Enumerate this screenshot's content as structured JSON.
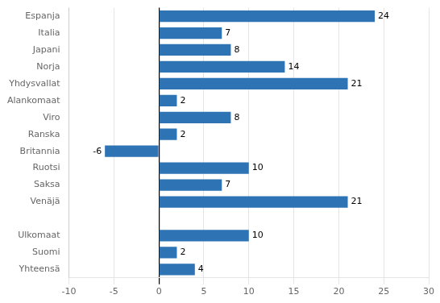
{
  "chart_data": {
    "type": "bar",
    "orientation": "horizontal",
    "categories": [
      "Yhteensä",
      "Suomi",
      "Ulkomaat",
      null,
      "Venäjä",
      "Saksa",
      "Ruotsi",
      "Britannia",
      "Ranska",
      "Viro",
      "Alankomaat",
      "Yhdysvallat",
      "Norja",
      "Japani",
      "Italia",
      "Espanja"
    ],
    "values": [
      4,
      2,
      10,
      null,
      21,
      7,
      10,
      -6,
      2,
      8,
      2,
      21,
      14,
      8,
      7,
      24
    ],
    "color": "#2E74B5",
    "xlim": [
      -10,
      30
    ],
    "xticks": [
      -10,
      -5,
      0,
      5,
      10,
      15,
      20,
      25,
      30
    ],
    "grid": true,
    "data_labels": true
  }
}
